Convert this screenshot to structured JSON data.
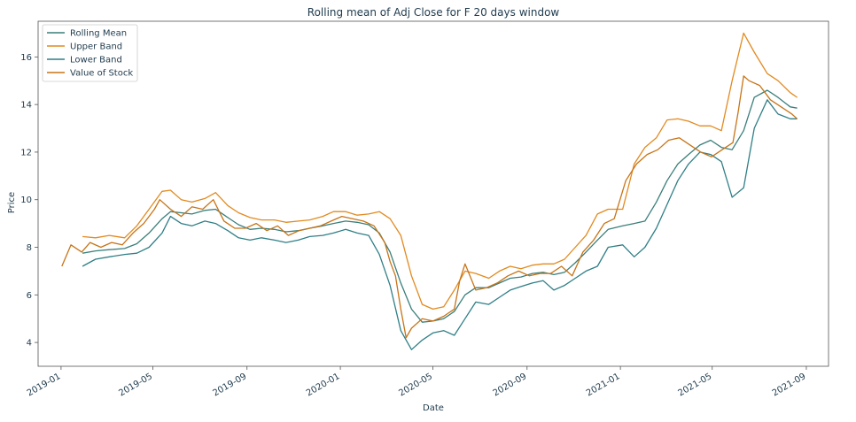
{
  "chart_data": {
    "type": "line",
    "title": "Rolling mean of Adj Close for F 20 days window",
    "xlabel": "Date",
    "ylabel": "Price",
    "xlim": [
      "2018-12-02",
      "2021-09-30"
    ],
    "ylim": [
      3.0,
      17.5
    ],
    "x_ticks": [
      "2019-01",
      "2019-05",
      "2019-09",
      "2020-01",
      "2020-05",
      "2020-09",
      "2021-01",
      "2021-05",
      "2021-09"
    ],
    "y_ticks": [
      4,
      6,
      8,
      10,
      12,
      14,
      16
    ],
    "grid": false,
    "legend_position": "upper-left",
    "series": [
      {
        "name": "Rolling Mean",
        "color": "#3a7f7a",
        "x": [
          "2019-01-29",
          "2019-02-15",
          "2019-03-05",
          "2019-03-25",
          "2019-04-10",
          "2019-04-26",
          "2019-05-13",
          "2019-05-24",
          "2019-06-07",
          "2019-06-21",
          "2019-07-08",
          "2019-07-22",
          "2019-08-07",
          "2019-08-21",
          "2019-09-05",
          "2019-09-20",
          "2019-10-07",
          "2019-10-22",
          "2019-11-07",
          "2019-11-22",
          "2019-12-09",
          "2019-12-23",
          "2020-01-08",
          "2020-01-23",
          "2020-02-07",
          "2020-02-21",
          "2020-03-06",
          "2020-03-20",
          "2020-04-03",
          "2020-04-17",
          "2020-05-01",
          "2020-05-15",
          "2020-05-29",
          "2020-06-12",
          "2020-06-26",
          "2020-07-13",
          "2020-07-27",
          "2020-08-10",
          "2020-08-24",
          "2020-09-08",
          "2020-09-22",
          "2020-10-06",
          "2020-10-20",
          "2020-11-03",
          "2020-11-17",
          "2020-12-02",
          "2020-12-16",
          "2021-01-04",
          "2021-01-19",
          "2021-02-02",
          "2021-02-17",
          "2021-03-03",
          "2021-03-17",
          "2021-03-31",
          "2021-04-15",
          "2021-04-29",
          "2021-05-13",
          "2021-05-27",
          "2021-06-11",
          "2021-06-25",
          "2021-07-12",
          "2021-07-26",
          "2021-08-11",
          "2021-08-20"
        ],
        "values": [
          7.75,
          7.85,
          7.9,
          7.95,
          8.15,
          8.6,
          9.2,
          9.5,
          9.45,
          9.4,
          9.55,
          9.6,
          9.25,
          8.95,
          8.75,
          8.8,
          8.75,
          8.65,
          8.7,
          8.8,
          8.9,
          9.0,
          9.1,
          9.05,
          8.95,
          8.6,
          7.8,
          6.5,
          5.4,
          4.85,
          4.9,
          5.0,
          5.3,
          6.0,
          6.3,
          6.3,
          6.5,
          6.7,
          6.75,
          6.9,
          6.95,
          6.85,
          6.95,
          7.35,
          7.8,
          8.3,
          8.75,
          8.9,
          9.0,
          9.1,
          9.9,
          10.8,
          11.5,
          11.9,
          12.3,
          12.5,
          12.2,
          12.1,
          12.9,
          14.3,
          14.6,
          14.3,
          13.9,
          13.85
        ]
      },
      {
        "name": "Upper Band",
        "color": "#e28a1f",
        "x": [
          "2019-01-29",
          "2019-02-15",
          "2019-03-05",
          "2019-03-25",
          "2019-04-10",
          "2019-04-26",
          "2019-05-13",
          "2019-05-24",
          "2019-06-07",
          "2019-06-21",
          "2019-07-08",
          "2019-07-22",
          "2019-08-07",
          "2019-08-21",
          "2019-09-05",
          "2019-09-20",
          "2019-10-07",
          "2019-10-22",
          "2019-11-07",
          "2019-11-22",
          "2019-12-09",
          "2019-12-23",
          "2020-01-08",
          "2020-01-23",
          "2020-02-07",
          "2020-02-21",
          "2020-03-06",
          "2020-03-20",
          "2020-04-03",
          "2020-04-17",
          "2020-05-01",
          "2020-05-15",
          "2020-05-29",
          "2020-06-12",
          "2020-06-26",
          "2020-07-13",
          "2020-07-27",
          "2020-08-10",
          "2020-08-24",
          "2020-09-08",
          "2020-09-22",
          "2020-10-06",
          "2020-10-20",
          "2020-11-03",
          "2020-11-17",
          "2020-12-02",
          "2020-12-16",
          "2021-01-04",
          "2021-01-19",
          "2021-02-02",
          "2021-02-17",
          "2021-03-03",
          "2021-03-17",
          "2021-03-31",
          "2021-04-15",
          "2021-04-29",
          "2021-05-13",
          "2021-05-27",
          "2021-06-11",
          "2021-06-25",
          "2021-07-12",
          "2021-07-26",
          "2021-08-11",
          "2021-08-20"
        ],
        "values": [
          8.45,
          8.4,
          8.5,
          8.4,
          8.9,
          9.6,
          10.35,
          10.4,
          10.0,
          9.9,
          10.05,
          10.3,
          9.75,
          9.45,
          9.25,
          9.15,
          9.15,
          9.05,
          9.1,
          9.15,
          9.3,
          9.5,
          9.5,
          9.35,
          9.4,
          9.5,
          9.2,
          8.5,
          6.8,
          5.6,
          5.4,
          5.5,
          6.2,
          7.0,
          6.9,
          6.7,
          7.0,
          7.2,
          7.1,
          7.25,
          7.3,
          7.3,
          7.5,
          8.0,
          8.5,
          9.4,
          9.6,
          9.6,
          11.5,
          12.2,
          12.6,
          13.35,
          13.4,
          13.3,
          13.1,
          13.1,
          12.9,
          15.0,
          17.0,
          16.2,
          15.3,
          15.0,
          14.5,
          14.3
        ]
      },
      {
        "name": "Lower Band",
        "color": "#2f7f86",
        "x": [
          "2019-01-29",
          "2019-02-15",
          "2019-03-05",
          "2019-03-25",
          "2019-04-10",
          "2019-04-26",
          "2019-05-13",
          "2019-05-24",
          "2019-06-07",
          "2019-06-21",
          "2019-07-08",
          "2019-07-22",
          "2019-08-07",
          "2019-08-21",
          "2019-09-05",
          "2019-09-20",
          "2019-10-07",
          "2019-10-22",
          "2019-11-07",
          "2019-11-22",
          "2019-12-09",
          "2019-12-23",
          "2020-01-08",
          "2020-01-23",
          "2020-02-07",
          "2020-02-21",
          "2020-03-06",
          "2020-03-20",
          "2020-04-03",
          "2020-04-17",
          "2020-05-01",
          "2020-05-15",
          "2020-05-29",
          "2020-06-12",
          "2020-06-26",
          "2020-07-13",
          "2020-07-27",
          "2020-08-10",
          "2020-08-24",
          "2020-09-08",
          "2020-09-22",
          "2020-10-06",
          "2020-10-20",
          "2020-11-03",
          "2020-11-17",
          "2020-12-02",
          "2020-12-16",
          "2021-01-04",
          "2021-01-19",
          "2021-02-02",
          "2021-02-17",
          "2021-03-03",
          "2021-03-17",
          "2021-03-31",
          "2021-04-15",
          "2021-04-29",
          "2021-05-13",
          "2021-05-27",
          "2021-06-11",
          "2021-06-25",
          "2021-07-12",
          "2021-07-26",
          "2021-08-11",
          "2021-08-20"
        ],
        "values": [
          7.2,
          7.5,
          7.6,
          7.7,
          7.75,
          8.0,
          8.6,
          9.3,
          9.0,
          8.9,
          9.1,
          9.0,
          8.7,
          8.4,
          8.3,
          8.4,
          8.3,
          8.2,
          8.3,
          8.45,
          8.5,
          8.6,
          8.75,
          8.6,
          8.5,
          7.7,
          6.4,
          4.5,
          3.7,
          4.1,
          4.4,
          4.5,
          4.3,
          5.0,
          5.7,
          5.6,
          5.9,
          6.2,
          6.35,
          6.5,
          6.6,
          6.2,
          6.4,
          6.7,
          7.0,
          7.2,
          8.0,
          8.1,
          7.6,
          8.0,
          8.8,
          9.8,
          10.8,
          11.5,
          12.0,
          11.9,
          11.6,
          10.1,
          10.5,
          13.0,
          14.2,
          13.6,
          13.4,
          13.4
        ]
      },
      {
        "name": "Value of Stock",
        "color": "#c77418",
        "x": [
          "2019-01-02",
          "2019-01-14",
          "2019-01-28",
          "2019-02-08",
          "2019-02-22",
          "2019-03-08",
          "2019-03-22",
          "2019-04-05",
          "2019-04-19",
          "2019-05-03",
          "2019-05-10",
          "2019-05-24",
          "2019-06-07",
          "2019-06-21",
          "2019-07-05",
          "2019-07-19",
          "2019-08-02",
          "2019-08-16",
          "2019-08-30",
          "2019-09-13",
          "2019-09-27",
          "2019-10-11",
          "2019-10-25",
          "2019-11-08",
          "2019-11-22",
          "2019-12-06",
          "2019-12-20",
          "2020-01-03",
          "2020-01-17",
          "2020-01-31",
          "2020-02-14",
          "2020-02-28",
          "2020-03-06",
          "2020-03-13",
          "2020-03-20",
          "2020-03-27",
          "2020-04-03",
          "2020-04-17",
          "2020-05-01",
          "2020-05-15",
          "2020-05-29",
          "2020-06-05",
          "2020-06-12",
          "2020-06-26",
          "2020-07-10",
          "2020-07-24",
          "2020-08-07",
          "2020-08-21",
          "2020-09-04",
          "2020-09-18",
          "2020-10-02",
          "2020-10-16",
          "2020-10-30",
          "2020-11-13",
          "2020-11-27",
          "2020-12-11",
          "2020-12-24",
          "2021-01-08",
          "2021-01-22",
          "2021-02-05",
          "2021-02-19",
          "2021-03-05",
          "2021-03-19",
          "2021-04-02",
          "2021-04-16",
          "2021-04-30",
          "2021-05-14",
          "2021-05-28",
          "2021-06-04",
          "2021-06-11",
          "2021-06-18",
          "2021-07-02",
          "2021-07-16",
          "2021-07-30",
          "2021-08-13",
          "2021-08-20"
        ],
        "values": [
          7.2,
          8.1,
          7.8,
          8.2,
          8.0,
          8.2,
          8.1,
          8.6,
          9.0,
          9.6,
          10.0,
          9.6,
          9.3,
          9.7,
          9.6,
          10.0,
          9.1,
          8.8,
          8.8,
          9.0,
          8.7,
          8.9,
          8.5,
          8.7,
          8.8,
          8.9,
          9.1,
          9.3,
          9.2,
          9.1,
          8.9,
          8.2,
          7.4,
          6.8,
          5.4,
          4.2,
          4.6,
          5.0,
          4.9,
          5.1,
          5.4,
          6.6,
          7.3,
          6.2,
          6.3,
          6.5,
          6.8,
          7.0,
          6.8,
          6.9,
          6.9,
          7.2,
          6.8,
          7.8,
          8.3,
          9.0,
          9.2,
          10.8,
          11.5,
          11.9,
          12.1,
          12.5,
          12.6,
          12.3,
          12.0,
          11.8,
          12.1,
          12.4,
          13.7,
          15.2,
          15.0,
          14.8,
          14.2,
          13.9,
          13.6,
          13.4
        ]
      }
    ]
  }
}
